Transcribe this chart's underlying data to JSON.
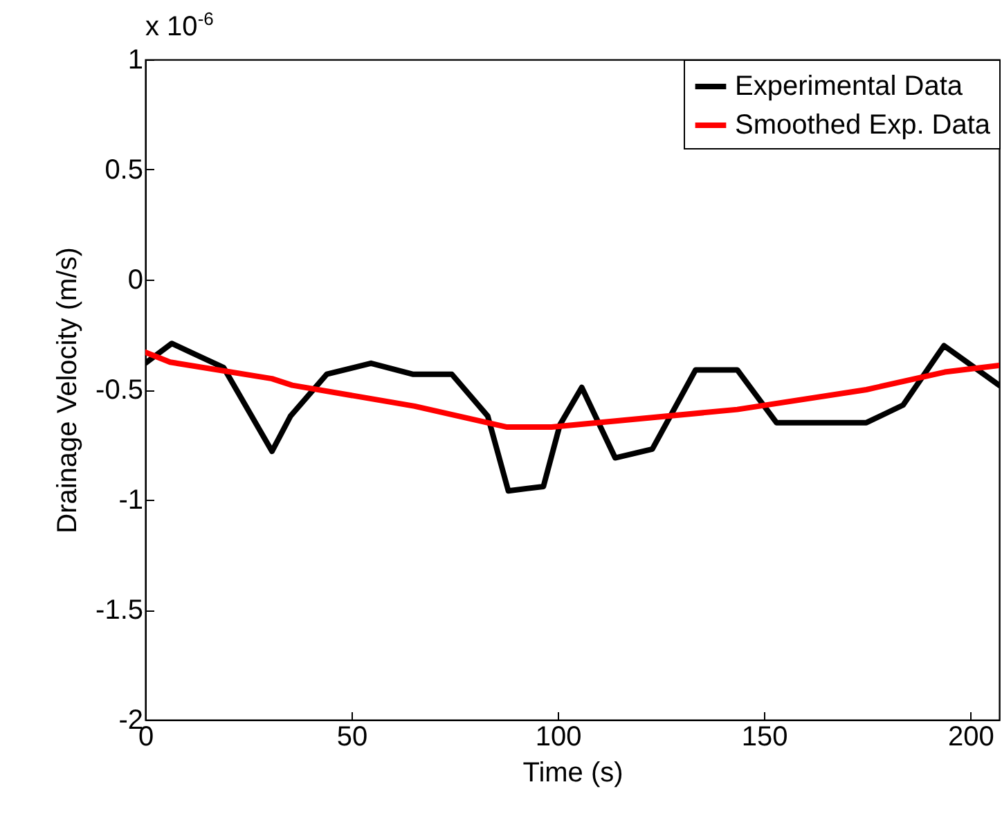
{
  "chart_data": {
    "type": "line",
    "xlabel": "Time (s)",
    "ylabel": "Drainage Velocity (m/s)",
    "annotations": [
      "x 10$^{-6}$"
    ],
    "xlim": [
      0,
      207
    ],
    "xticks": [
      0,
      50,
      100,
      150,
      200
    ],
    "ylim": [
      -2,
      1
    ],
    "yticks": [
      -2,
      -1.5,
      -1,
      -0.5,
      0,
      0.5,
      1
    ],
    "grid": false,
    "legend": "top right",
    "marker": "none",
    "line_style": "solid",
    "series": [
      {
        "name": "Experimental Data",
        "color": "#000000",
        "x": [
          0,
          6.4,
          19,
          30.7,
          35.2,
          44,
          54.7,
          64.8,
          74.3,
          83,
          88,
          96.5,
          100.5,
          105.8,
          113.9,
          122.9,
          133.4,
          143.5,
          153,
          163.8,
          174.8,
          183.7,
          193.6,
          207
        ],
        "values": [
          -0.38,
          -0.29,
          -0.4,
          -0.78,
          -0.62,
          -0.43,
          -0.38,
          -0.43,
          -0.43,
          -0.62,
          -0.96,
          -0.94,
          -0.66,
          -0.49,
          -0.81,
          -0.77,
          -0.41,
          -0.41,
          -0.65,
          -0.65,
          -0.65,
          -0.57,
          -0.3,
          -0.48
        ]
      },
      {
        "name": "Smoothed Exp. Data",
        "color": "#ff0000",
        "x": [
          0,
          6,
          30.7,
          35.6,
          65.3,
          87.7,
          98.5,
          143.5,
          174.8,
          193.8,
          207
        ],
        "values": [
          -0.33,
          -0.375,
          -0.45,
          -0.48,
          -0.575,
          -0.67,
          -0.67,
          -0.59,
          -0.5,
          -0.42,
          -0.39
        ]
      }
    ]
  }
}
